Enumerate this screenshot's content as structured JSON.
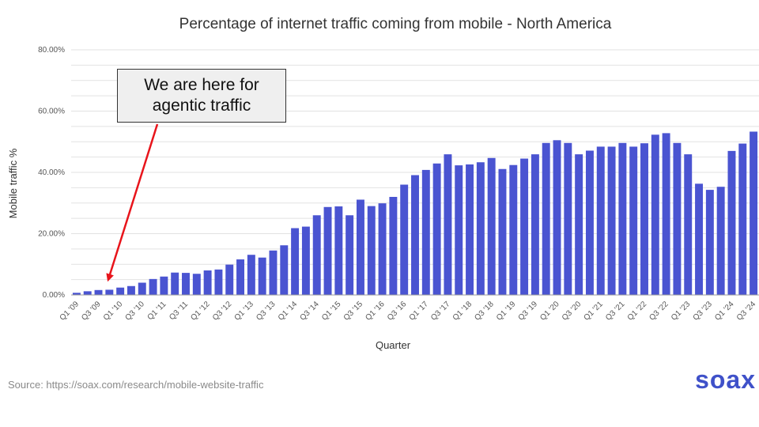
{
  "chart_data": {
    "type": "bar",
    "title": "Percentage of internet traffic coming from mobile - North America",
    "xlabel": "Quarter",
    "ylabel": "Mobile traffic %",
    "ylim": [
      0,
      80
    ],
    "ytick_values": [
      0,
      20,
      40,
      60,
      80
    ],
    "ytick_labels": [
      "0.00%",
      "20.00%",
      "40.00%",
      "60.00%",
      "80.00%"
    ],
    "grid": true,
    "bar_color": "#4a54d1",
    "categories": [
      "Q1 '09",
      "Q2 '09",
      "Q3 '09",
      "Q4 '09",
      "Q1 '10",
      "Q2 '10",
      "Q3 '10",
      "Q4 '10",
      "Q1 '11",
      "Q2 '11",
      "Q3 '11",
      "Q4 '11",
      "Q1 '12",
      "Q2 '12",
      "Q3 '12",
      "Q4 '12",
      "Q1 '13",
      "Q2 '13",
      "Q3 '13",
      "Q4 '13",
      "Q1 '14",
      "Q2 '14",
      "Q3 '14",
      "Q4 '14",
      "Q1 '15",
      "Q2 '15",
      "Q3 '15",
      "Q4 '15",
      "Q1 '16",
      "Q2 '16",
      "Q3 '16",
      "Q4 '16",
      "Q1 '17",
      "Q2 '17",
      "Q3 '17",
      "Q4 '17",
      "Q1 '18",
      "Q2 '18",
      "Q3 '18",
      "Q4 '18",
      "Q1 '19",
      "Q2 '19",
      "Q3 '19",
      "Q4 '19",
      "Q1 '20",
      "Q2 '20",
      "Q3 '20",
      "Q4 '20",
      "Q1 '21",
      "Q2 '21",
      "Q3 '21",
      "Q4 '21",
      "Q1 '22",
      "Q2 '22",
      "Q3 '22",
      "Q4 '22",
      "Q1 '23",
      "Q2 '23",
      "Q3 '23",
      "Q4 '23",
      "Q1 '24",
      "Q2 '24",
      "Q3 '24"
    ],
    "visible_tick_labels": [
      "Q1 '09",
      "Q3 '09",
      "Q1 '10",
      "Q3 '10",
      "Q1 '11",
      "Q3 '11",
      "Q1 '12",
      "Q3 '12",
      "Q1 '13",
      "Q3 '13",
      "Q1 '14",
      "Q3 '14",
      "Q1 '15",
      "Q3 '15",
      "Q1 '16",
      "Q3 '16",
      "Q1 '17",
      "Q3 '17",
      "Q1 '18",
      "Q3 '18",
      "Q1 '19",
      "Q3 '19",
      "Q1 '20",
      "Q3 '20",
      "Q1 '21",
      "Q3 '21",
      "Q1 '22",
      "Q3 '22",
      "Q1 '23",
      "Q3 '23",
      "Q1 '24",
      "Q3 '24"
    ],
    "values": [
      0.7,
      1.2,
      1.6,
      1.7,
      2.4,
      2.9,
      4.0,
      5.2,
      6.0,
      7.3,
      7.2,
      6.9,
      8.0,
      8.3,
      9.9,
      11.6,
      13.1,
      12.2,
      14.5,
      16.2,
      21.8,
      22.3,
      26.0,
      28.7,
      28.9,
      26.0,
      31.1,
      29.0,
      29.9,
      32.0,
      36.0,
      39.1,
      40.8,
      42.9,
      45.9,
      42.3,
      42.6,
      43.3,
      44.7,
      41.1,
      42.4,
      44.5,
      45.9,
      49.6,
      50.5,
      49.6,
      45.9,
      47.1,
      48.4,
      48.4,
      49.6,
      48.4,
      49.5,
      52.3,
      52.8,
      49.6,
      45.9,
      36.3,
      34.3,
      35.3,
      47.0,
      49.4,
      53.3
    ]
  },
  "annotation": {
    "text": "We are here for\nagentic traffic",
    "arrow_color": "#e8141b",
    "target_category": "Q4 '09"
  },
  "footer": {
    "source": "Source: https://soax.com/research/mobile-website-traffic",
    "logo": "soax"
  }
}
